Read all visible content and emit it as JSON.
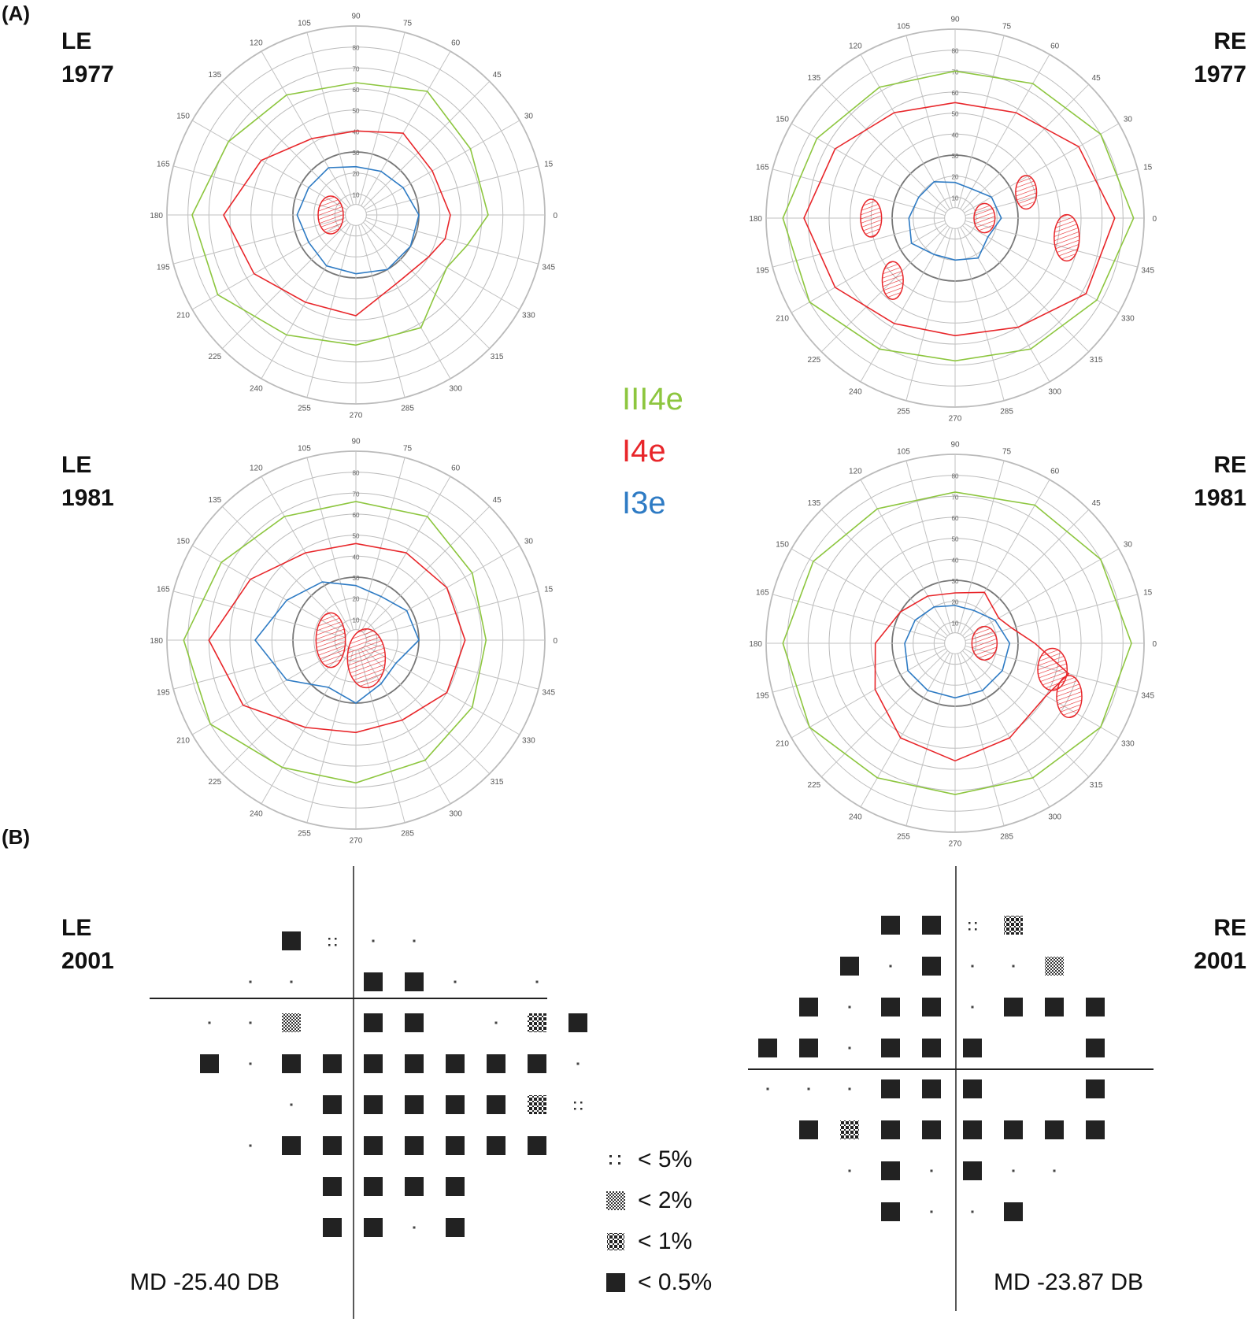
{
  "section_a": {
    "label": "(A)"
  },
  "section_b": {
    "label": "(B)"
  },
  "perimetry_panels": [
    {
      "eye": "LE",
      "year": "1977"
    },
    {
      "eye": "RE",
      "year": "1977"
    },
    {
      "eye": "LE",
      "year": "1981"
    },
    {
      "eye": "RE",
      "year": "1981"
    }
  ],
  "isopter_legend": [
    {
      "label": "III4e",
      "color": "#8dc63f"
    },
    {
      "label": "I4e",
      "color": "#e8262a"
    },
    {
      "label": "I3e",
      "color": "#2e7bc4"
    }
  ],
  "chart_grid": {
    "angle_labels": [
      "0",
      "15",
      "30",
      "45",
      "60",
      "75",
      "90",
      "105",
      "120",
      "135",
      "150",
      "165",
      "180",
      "195",
      "210",
      "225",
      "240",
      "255",
      "270",
      "285",
      "300",
      "315",
      "330",
      "345"
    ],
    "radius_labels": [
      "10",
      "20",
      "30",
      "40",
      "50",
      "60",
      "70",
      "80",
      "90"
    ]
  },
  "field_panels": [
    {
      "eye": "LE",
      "year": "2001",
      "md": "MD -25.40 DB"
    },
    {
      "eye": "RE",
      "year": "2001",
      "md": "MD -23.87 DB"
    }
  ],
  "probability_legend": [
    {
      "symbol": "dots",
      "label": "< 5%"
    },
    {
      "symbol": "checker",
      "label": "< 2%"
    },
    {
      "symbol": "cross",
      "label": "< 1%"
    },
    {
      "symbol": "solid",
      "label": "< 0.5%"
    }
  ]
}
